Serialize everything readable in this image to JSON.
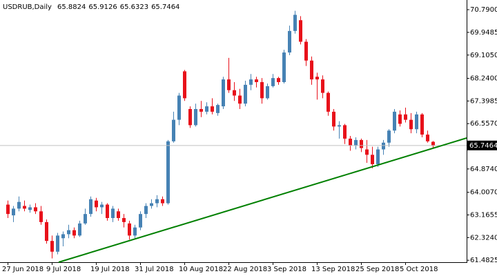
{
  "chart_data": {
    "type": "candlestick",
    "title": "USDRUB,Daily",
    "categories": [
      "27 Jun 2018",
      null,
      null,
      null,
      null,
      null,
      null,
      null,
      "9 Jul 2018",
      null,
      null,
      null,
      null,
      null,
      null,
      null,
      "19 Jul 2018",
      null,
      null,
      null,
      null,
      null,
      null,
      null,
      "31 Jul 2018",
      null,
      null,
      null,
      null,
      null,
      null,
      null,
      "10 Aug 2018",
      null,
      null,
      null,
      null,
      null,
      null,
      null,
      "22 Aug 2018",
      null,
      null,
      null,
      null,
      null,
      null,
      null,
      "3 Sep 2018",
      null,
      null,
      null,
      null,
      null,
      null,
      null,
      "13 Sep 2018",
      null,
      null,
      null,
      null,
      null,
      null,
      null,
      "25 Sep 2018",
      null,
      null,
      null,
      null,
      null,
      null,
      null,
      "5 Oct 2018",
      null,
      null,
      null,
      null,
      null
    ],
    "open": [
      63.55,
      63.15,
      63.4,
      63.5,
      63.35,
      63.45,
      63.3,
      62.9,
      62.2,
      61.8,
      62.3,
      62.45,
      62.6,
      62.4,
      62.85,
      63.2,
      63.7,
      63.45,
      63.55,
      63.05,
      63.3,
      63.05,
      62.85,
      62.4,
      62.7,
      63.2,
      63.5,
      63.6,
      63.75,
      63.6,
      65.9,
      66.7,
      68.5,
      67.1,
      66.5,
      67.1,
      67.0,
      67.2,
      66.95,
      67.2,
      68.2,
      67.8,
      67.6,
      67.3,
      68.0,
      68.2,
      68.1,
      67.5,
      67.95,
      68.25,
      68.1,
      69.2,
      70.0,
      70.4,
      69.6,
      68.9,
      68.3,
      68.2,
      67.7,
      67.0,
      66.45,
      66.5,
      66.0,
      65.75,
      65.95,
      65.6,
      65.4,
      65.05,
      65.6,
      65.85,
      66.3,
      66.9,
      66.9,
      66.7,
      66.35,
      66.9,
      66.15,
      65.8824
    ],
    "high": [
      63.7,
      63.5,
      63.85,
      63.7,
      63.55,
      63.6,
      63.5,
      63.0,
      62.4,
      62.5,
      62.55,
      62.8,
      62.7,
      62.95,
      63.4,
      63.85,
      63.8,
      63.65,
      63.6,
      63.5,
      63.4,
      63.2,
      62.95,
      62.8,
      63.3,
      63.6,
      63.75,
      63.9,
      63.85,
      65.95,
      67.0,
      67.7,
      68.55,
      67.2,
      67.3,
      67.4,
      67.35,
      67.5,
      67.3,
      68.3,
      69.0,
      68.1,
      67.85,
      68.15,
      68.4,
      68.3,
      68.25,
      68.05,
      68.4,
      68.3,
      69.3,
      70.2,
      70.75,
      70.55,
      69.7,
      69.05,
      68.45,
      68.35,
      67.75,
      67.1,
      66.65,
      66.55,
      66.1,
      66.05,
      66.0,
      65.95,
      65.7,
      65.7,
      65.95,
      66.35,
      67.1,
      67.05,
      67.15,
      66.95,
      67.0,
      66.95,
      66.3,
      65.9126
    ],
    "low": [
      63.05,
      62.9,
      63.3,
      63.3,
      63.25,
      63.2,
      62.8,
      62.1,
      61.55,
      61.7,
      62.0,
      62.3,
      62.3,
      62.35,
      62.8,
      63.1,
      63.3,
      63.2,
      62.95,
      62.9,
      62.95,
      62.7,
      62.25,
      62.3,
      62.6,
      63.05,
      63.4,
      63.45,
      63.5,
      63.55,
      65.85,
      66.5,
      67.4,
      66.4,
      66.45,
      66.8,
      66.9,
      66.9,
      66.85,
      67.1,
      67.7,
      67.4,
      67.1,
      67.2,
      67.8,
      67.9,
      67.3,
      67.45,
      67.9,
      68.0,
      68.05,
      69.1,
      69.9,
      69.5,
      68.7,
      68.0,
      67.45,
      67.5,
      66.85,
      66.3,
      66.0,
      65.8,
      65.55,
      65.6,
      65.5,
      65.1,
      64.9,
      64.95,
      65.4,
      65.7,
      66.2,
      66.45,
      66.6,
      66.2,
      66.2,
      66.05,
      65.85,
      65.6323
    ],
    "close": [
      63.2,
      63.4,
      63.65,
      63.4,
      63.45,
      63.3,
      62.9,
      62.2,
      61.8,
      62.4,
      62.45,
      62.6,
      62.4,
      62.85,
      63.2,
      63.75,
      63.45,
      63.55,
      63.05,
      63.4,
      63.05,
      62.9,
      62.4,
      62.7,
      63.2,
      63.5,
      63.6,
      63.75,
      63.6,
      65.9,
      66.7,
      67.6,
      67.5,
      66.5,
      67.1,
      67.0,
      67.2,
      67.0,
      67.25,
      68.2,
      67.8,
      67.6,
      67.3,
      68.0,
      68.2,
      68.1,
      67.5,
      67.95,
      68.25,
      68.1,
      69.2,
      70.0,
      70.6,
      69.6,
      68.9,
      68.2,
      68.2,
      67.7,
      67.0,
      66.45,
      66.5,
      66.0,
      65.75,
      65.95,
      65.65,
      65.4,
      65.05,
      65.6,
      65.85,
      66.3,
      67.0,
      66.55,
      66.7,
      66.35,
      66.9,
      66.15,
      65.9,
      65.7464
    ],
    "up_color": "#4682b4",
    "down_color": "#e8101a",
    "ylim": [
      61.41,
      71.15
    ],
    "yticks": [
      {
        "value": 70.79,
        "label": "70.7900"
      },
      {
        "value": 69.9485,
        "label": "69.9485"
      },
      {
        "value": 69.105,
        "label": "69.1050"
      },
      {
        "value": 68.24,
        "label": "68.2400"
      },
      {
        "value": 67.3985,
        "label": "67.3985"
      },
      {
        "value": 66.557,
        "label": "66.5570"
      },
      {
        "value": 64.874,
        "label": "64.8740"
      },
      {
        "value": 64.007,
        "label": "64.0070"
      },
      {
        "value": 63.1655,
        "label": "63.1655"
      },
      {
        "value": 62.324,
        "label": "62.3240"
      },
      {
        "value": 61.4825,
        "label": "61.4825"
      }
    ]
  }
}
